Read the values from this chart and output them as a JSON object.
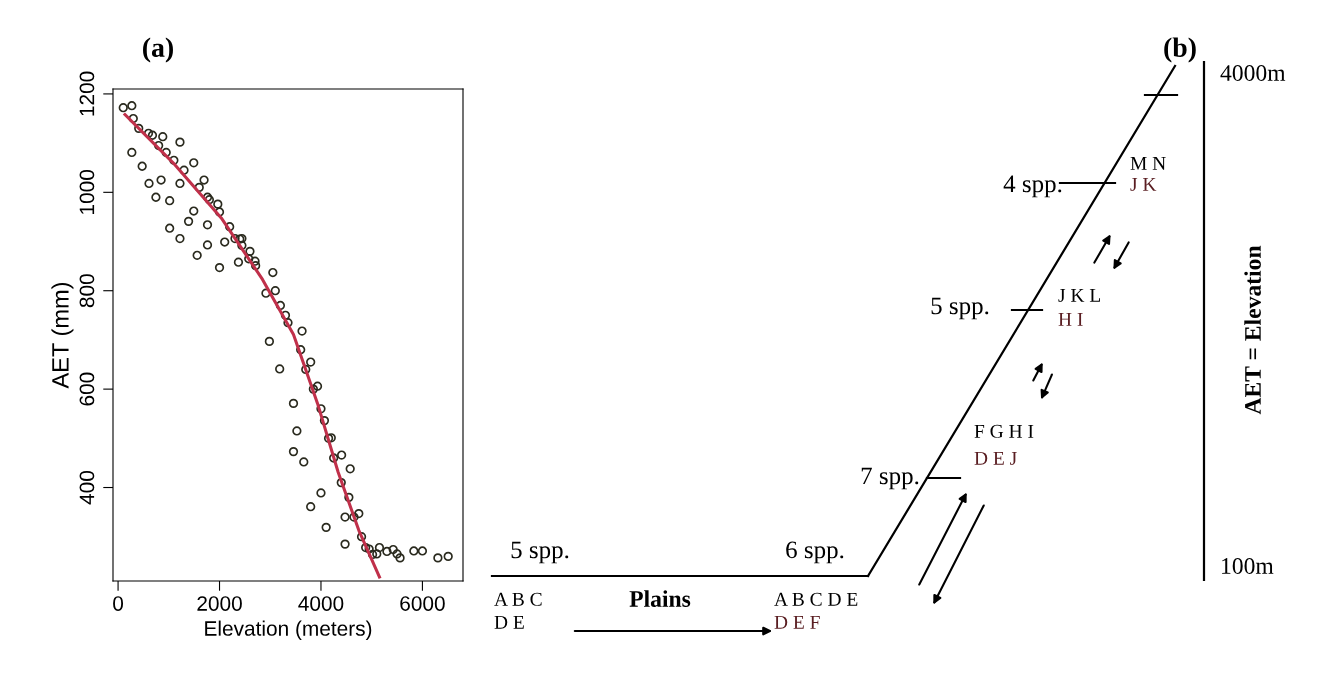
{
  "chart_data": [
    {
      "type": "scatter",
      "title": "(a)",
      "xlabel": "Elevation (meters)",
      "ylabel": "AET (mm)",
      "xlim": [
        -100,
        6800
      ],
      "ylim": [
        210,
        1210
      ],
      "xticks": [
        0,
        2000,
        4000,
        6000
      ],
      "yticks": [
        400,
        600,
        800,
        1000,
        1200
      ],
      "grid": false,
      "series": [
        {
          "type": "scatter",
          "color": "#2a2a1e",
          "marker": "circle",
          "x": [
            300,
            600,
            800,
            1100,
            1300,
            1600,
            1800,
            2200,
            2400,
            2700,
            3100,
            3300,
            3600,
            3700,
            3850,
            4000,
            4150,
            4250,
            4400,
            4550,
            4650,
            4800,
            4950,
            5100,
            5300,
            5500,
            2000,
            2600,
            3200,
            3350,
            102,
            271,
            407,
            678,
            881,
            1220,
            1492,
            1695,
            1966,
            2305,
            2576,
            3051,
            2915,
            2983,
            3627,
            3186,
            3797,
            3458,
            3932,
            3525,
            4068,
            3458,
            4203,
            4407,
            4576,
            3661,
            3797,
            4000,
            4102,
            4475,
            4746,
            4475,
            4881,
            5153,
            5424,
            5559,
            5831,
            6000,
            6305,
            6508,
            5017,
            271,
            475,
            610,
            746,
            1017,
            1017,
            1220,
            1492,
            1559,
            1763,
            2000,
            2373,
            1390,
            848,
            1220,
            1763,
            2102,
            2441,
            2712,
            949,
            1763,
            2441
          ],
          "values": [
            1150,
            1120,
            1095,
            1065,
            1045,
            1010,
            985,
            930,
            905,
            860,
            800,
            750,
            680,
            640,
            600,
            560,
            500,
            460,
            410,
            380,
            340,
            300,
            275,
            265,
            270,
            265,
            960,
            880,
            770,
            735,
            1172,
            1176,
            1130,
            1116,
            1113,
            1102,
            1060,
            1025,
            976,
            906,
            865,
            837,
            795,
            697,
            718,
            641,
            655,
            571,
            606,
            515,
            536,
            473,
            501,
            466,
            438,
            452,
            361,
            389,
            319,
            340,
            347,
            285,
            278,
            278,
            274,
            257,
            271,
            271,
            257,
            260,
            264,
            1081,
            1053,
            1018,
            990,
            983,
            927,
            906,
            962,
            872,
            893,
            847,
            858,
            941,
            1025,
            1018,
            934,
            899,
            892,
            851,
            1081,
            990,
            906
          ]
        },
        {
          "type": "line",
          "color": "#c0304a",
          "marker": "none",
          "line_style": "solid",
          "x": [
            136,
            1085,
            2034,
            2847,
            3458,
            3932,
            4339,
            4746,
            5153
          ],
          "values": [
            1158,
            1060,
            948,
            823,
            711,
            571,
            431,
            313,
            218
          ]
        }
      ]
    },
    {
      "type": "other",
      "title": "(b)",
      "annotations": [
        "5 spp.",
        "6 spp.",
        "7 spp.",
        "5 spp.",
        "4 spp.",
        "A B C",
        "D E",
        "Plains",
        "A B C D E",
        "D E F",
        "F G H I",
        "D E J",
        "J K L",
        "H I",
        "M N",
        "J K",
        "4000m",
        "100m",
        "AET = Elevation"
      ]
    }
  ]
}
